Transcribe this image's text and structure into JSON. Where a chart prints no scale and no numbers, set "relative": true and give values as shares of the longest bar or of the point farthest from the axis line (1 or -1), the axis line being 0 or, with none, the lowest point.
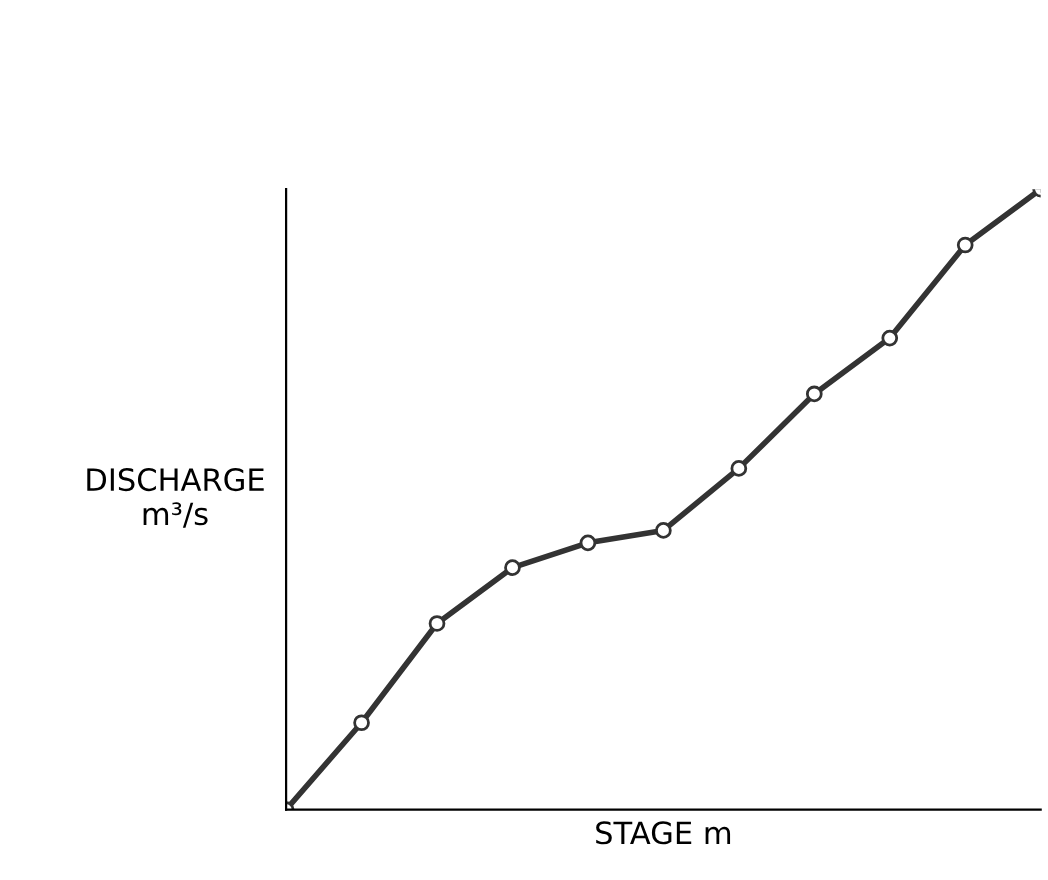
{
  "chart_data": {
    "type": "line",
    "xlabel": "STAGE m",
    "ylabel": "DISCHARGE\nm³/s",
    "relative": true,
    "tick_labels": false,
    "marker": "circle",
    "line_style": "solid",
    "categories": [
      null,
      null,
      null,
      null,
      null,
      null,
      null,
      null,
      null,
      null,
      null
    ],
    "series": [
      {
        "color": "#333333",
        "values": [
          0,
          0.14,
          0.3,
          0.39,
          0.43,
          0.45,
          0.55,
          0.67,
          0.76,
          0.91,
          1.0
        ]
      }
    ]
  }
}
